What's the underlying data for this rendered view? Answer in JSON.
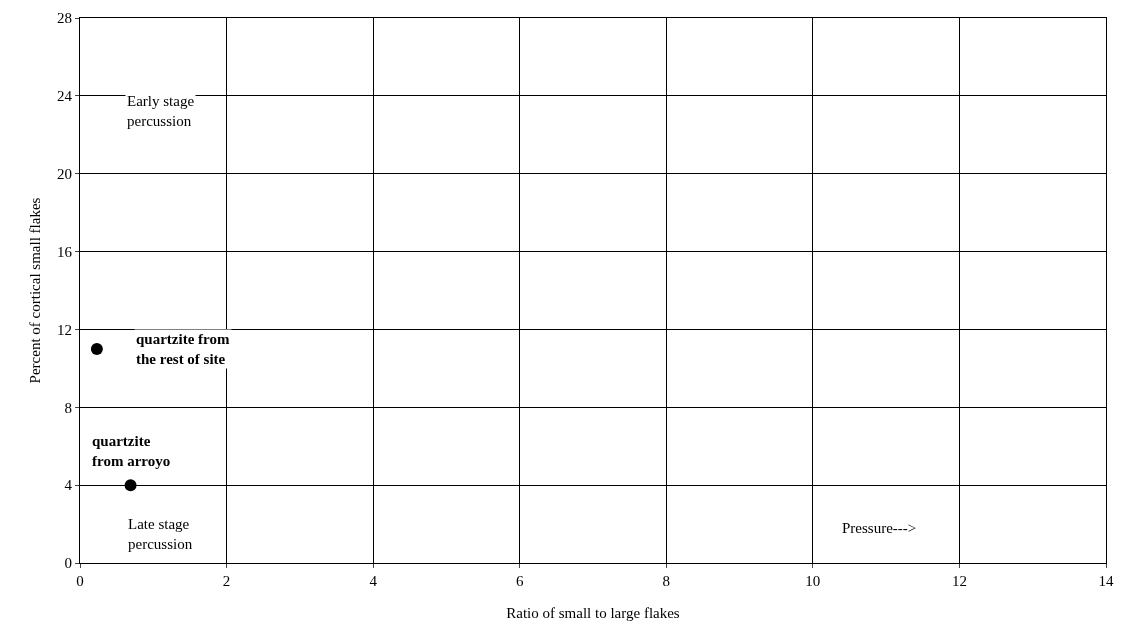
{
  "chart_data": {
    "type": "scatter",
    "xlabel": "Ratio of small to large flakes",
    "ylabel": "Percent of cortical small flakes",
    "x": [
      0.23,
      0.69
    ],
    "values": [
      11,
      4
    ],
    "color": "#000000",
    "marker": "circle",
    "xlim": [
      0,
      14
    ],
    "xticks": [
      0,
      2,
      4,
      6,
      8,
      10,
      12,
      14
    ],
    "ylim": [
      0,
      28
    ],
    "yticks": [
      0,
      4,
      8,
      12,
      16,
      20,
      24,
      28
    ],
    "grid": true,
    "annotations": [
      {
        "text": "quartzite from the rest of site",
        "x": 0.23,
        "y": 11
      },
      {
        "text": "quartzite from arroyo",
        "x": 0.69,
        "y": 4
      },
      "Early stage percussion",
      "Late stage percussion",
      "Pressure--->"
    ]
  }
}
